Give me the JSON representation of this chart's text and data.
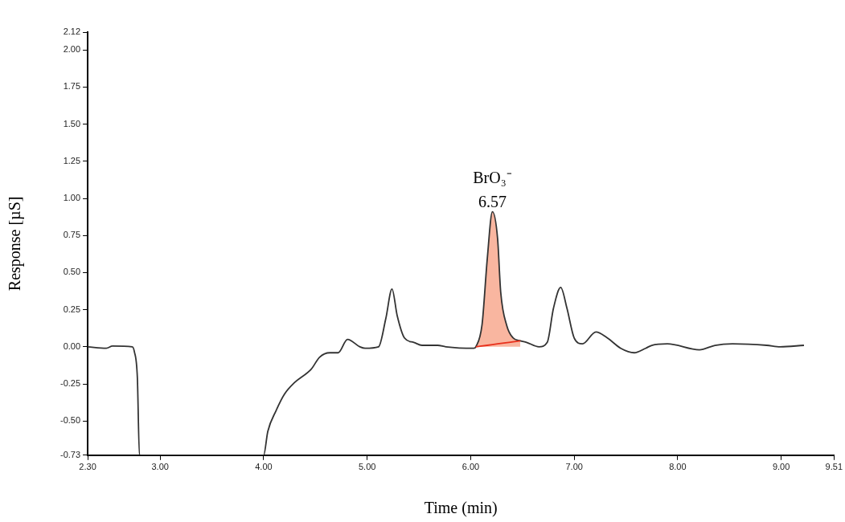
{
  "chart_data": {
    "type": "line",
    "xlabel": "Time (min)",
    "ylabel": "Response [µS]",
    "series": [
      {
        "color": "#333333",
        "x": [
          2.3,
          2.48,
          2.54,
          2.73,
          2.75,
          2.78,
          2.8,
          4.0,
          4.04,
          4.12,
          4.2,
          4.3,
          4.46,
          4.54,
          4.64,
          4.72,
          4.81,
          4.93,
          4.98,
          5.11,
          5.18,
          5.24,
          5.29,
          5.36,
          5.45,
          5.53,
          5.68,
          5.76,
          6.03,
          6.05,
          6.11,
          6.16,
          6.21,
          6.26,
          6.29,
          6.35,
          6.41,
          6.48,
          6.54,
          6.66,
          6.74,
          6.8,
          6.87,
          6.93,
          7.0,
          7.08,
          7.21,
          7.32,
          7.45,
          7.58,
          7.69,
          7.75,
          7.9,
          8.21,
          8.36,
          8.53,
          8.86,
          8.99,
          9.22
        ],
        "values": [
          0.0,
          -0.01,
          0.005,
          0.0,
          -0.03,
          -0.21,
          -0.73,
          -0.73,
          -0.57,
          -0.43,
          -0.32,
          -0.24,
          -0.15,
          -0.07,
          -0.04,
          -0.04,
          0.05,
          0.0,
          -0.01,
          0.0,
          0.19,
          0.39,
          0.21,
          0.06,
          0.03,
          0.01,
          0.01,
          0.0,
          -0.01,
          0.0,
          0.15,
          0.59,
          0.91,
          0.73,
          0.37,
          0.14,
          0.06,
          0.04,
          0.03,
          0.0,
          0.03,
          0.26,
          0.4,
          0.26,
          0.06,
          0.02,
          0.1,
          0.06,
          -0.01,
          -0.04,
          -0.01,
          0.01,
          0.02,
          -0.02,
          0.01,
          0.02,
          0.01,
          0.0,
          0.01
        ]
      },
      {
        "type": "area",
        "color": "#f8a488",
        "x": [
          6.05,
          6.11,
          6.16,
          6.21,
          6.26,
          6.29,
          6.35,
          6.41,
          6.48
        ],
        "values": [
          0.0,
          0.15,
          0.59,
          0.91,
          0.73,
          0.37,
          0.14,
          0.06,
          0.04
        ]
      },
      {
        "type": "line",
        "color": "#e8301c",
        "x": [
          6.05,
          6.16,
          6.26,
          6.37,
          6.48
        ],
        "values": [
          0.0,
          0.01,
          0.02,
          0.03,
          0.04
        ]
      }
    ],
    "annotations": [
      {
        "text": "BrO₃⁻\n6.57",
        "x": 6.21,
        "y": 0.91
      }
    ],
    "xlim": [
      2.3,
      9.51
    ],
    "xticks": [
      {
        "value": 2.3,
        "label": "2.30"
      },
      {
        "value": 3,
        "label": "3.00"
      },
      {
        "value": 4,
        "label": "4.00"
      },
      {
        "value": 5,
        "label": "5.00"
      },
      {
        "value": 6,
        "label": "6.00"
      },
      {
        "value": 7,
        "label": "7.00"
      },
      {
        "value": 8,
        "label": "8.00"
      },
      {
        "value": 9,
        "label": "9.00"
      },
      {
        "value": 9.51,
        "label": "9.51"
      }
    ],
    "ylim": [
      -0.73,
      2.12
    ],
    "yticks": [
      {
        "value": -0.73,
        "label": "-0.73"
      },
      {
        "value": -0.5,
        "label": "-0.50"
      },
      {
        "value": -0.25,
        "label": "-0.25"
      },
      {
        "value": 0,
        "label": "0.00"
      },
      {
        "value": 0.25,
        "label": "0.25"
      },
      {
        "value": 0.5,
        "label": "0.50"
      },
      {
        "value": 0.75,
        "label": "0.75"
      },
      {
        "value": 1,
        "label": "1.00"
      },
      {
        "value": 1.25,
        "label": "1.25"
      },
      {
        "value": 1.5,
        "label": "1.50"
      },
      {
        "value": 1.75,
        "label": "1.75"
      },
      {
        "value": 2,
        "label": "2.00"
      },
      {
        "value": 2.12,
        "label": "2.12"
      }
    ],
    "grid": false,
    "legend": false
  }
}
